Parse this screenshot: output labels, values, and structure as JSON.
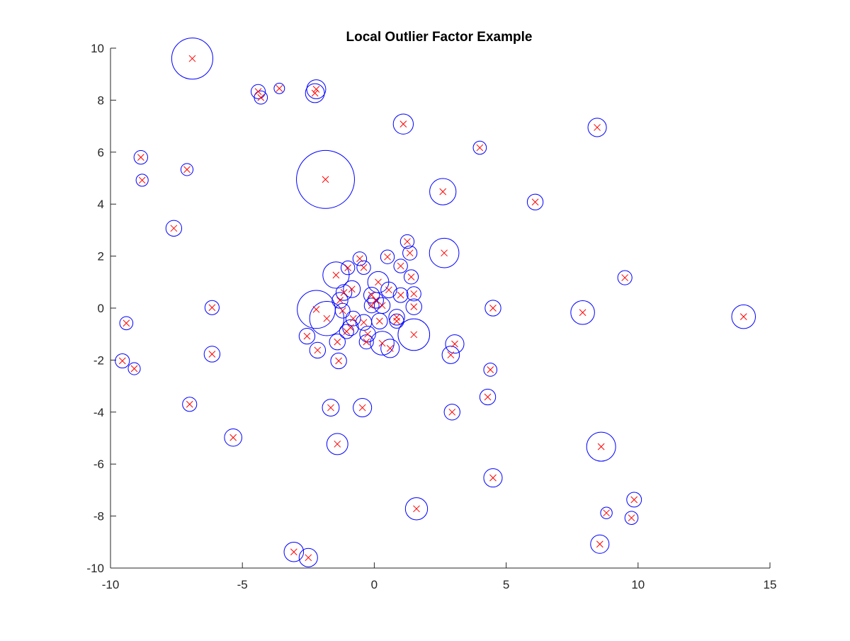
{
  "chart_data": {
    "type": "scatter",
    "title": "Local Outlier Factor Example",
    "xlabel": "",
    "ylabel": "",
    "xlim": [
      -10,
      15
    ],
    "ylim": [
      -10,
      10
    ],
    "xticks": [
      -10,
      -5,
      0,
      5,
      10,
      15
    ],
    "yticks": [
      -10,
      -8,
      -6,
      -4,
      -2,
      0,
      2,
      4,
      6,
      8,
      10
    ],
    "xtick_labels": [
      "-10",
      "-5",
      "0",
      "5",
      "10",
      "15"
    ],
    "ytick_labels": [
      "-10",
      "-8",
      "-6",
      "-4",
      "-2",
      "0",
      "2",
      "4",
      "6",
      "8",
      "10"
    ],
    "grid": false,
    "legend": "none",
    "point_marker": "x",
    "point_color": "#ff0000",
    "circle_color": "#0000ff",
    "note": "r = circle radius (LOF score magnitude) in x-axis data units",
    "points": [
      {
        "x": -6.9,
        "y": 9.6,
        "r": 0.78
      },
      {
        "x": -4.4,
        "y": 8.33,
        "r": 0.27
      },
      {
        "x": -4.3,
        "y": 8.1,
        "r": 0.25
      },
      {
        "x": -3.6,
        "y": 8.45,
        "r": 0.2
      },
      {
        "x": -2.2,
        "y": 8.42,
        "r": 0.36
      },
      {
        "x": -2.25,
        "y": 8.27,
        "r": 0.36
      },
      {
        "x": 1.1,
        "y": 7.08,
        "r": 0.38
      },
      {
        "x": 8.45,
        "y": 6.95,
        "r": 0.35
      },
      {
        "x": -8.85,
        "y": 5.8,
        "r": 0.26
      },
      {
        "x": -8.8,
        "y": 4.92,
        "r": 0.23
      },
      {
        "x": -7.1,
        "y": 5.33,
        "r": 0.23
      },
      {
        "x": -1.85,
        "y": 4.95,
        "r": 1.1
      },
      {
        "x": 4.0,
        "y": 6.17,
        "r": 0.25
      },
      {
        "x": 2.6,
        "y": 4.48,
        "r": 0.5
      },
      {
        "x": 6.1,
        "y": 4.08,
        "r": 0.3
      },
      {
        "x": -7.6,
        "y": 3.07,
        "r": 0.3
      },
      {
        "x": 1.25,
        "y": 2.56,
        "r": 0.26
      },
      {
        "x": 1.35,
        "y": 2.12,
        "r": 0.27
      },
      {
        "x": 2.65,
        "y": 2.12,
        "r": 0.56
      },
      {
        "x": 0.5,
        "y": 1.97,
        "r": 0.26
      },
      {
        "x": -0.55,
        "y": 1.9,
        "r": 0.26
      },
      {
        "x": -0.4,
        "y": 1.56,
        "r": 0.26
      },
      {
        "x": -1.0,
        "y": 1.55,
        "r": 0.26
      },
      {
        "x": 1.0,
        "y": 1.62,
        "r": 0.26
      },
      {
        "x": -1.45,
        "y": 1.27,
        "r": 0.5
      },
      {
        "x": 1.4,
        "y": 1.2,
        "r": 0.27
      },
      {
        "x": 0.15,
        "y": 1.0,
        "r": 0.4
      },
      {
        "x": 9.5,
        "y": 1.17,
        "r": 0.27
      },
      {
        "x": -0.85,
        "y": 0.73,
        "r": 0.32
      },
      {
        "x": -1.15,
        "y": 0.6,
        "r": 0.3
      },
      {
        "x": 0.55,
        "y": 0.7,
        "r": 0.3
      },
      {
        "x": 1.5,
        "y": 0.55,
        "r": 0.27
      },
      {
        "x": 1.0,
        "y": 0.5,
        "r": 0.28
      },
      {
        "x": -1.3,
        "y": 0.3,
        "r": 0.3
      },
      {
        "x": -0.1,
        "y": 0.5,
        "r": 0.3
      },
      {
        "x": 0.05,
        "y": 0.3,
        "r": 0.3
      },
      {
        "x": -0.1,
        "y": 0.1,
        "r": 0.28
      },
      {
        "x": 0.3,
        "y": 0.1,
        "r": 0.3
      },
      {
        "x": 1.5,
        "y": 0.05,
        "r": 0.3
      },
      {
        "x": -6.15,
        "y": 0.02,
        "r": 0.27
      },
      {
        "x": 4.5,
        "y": 0.0,
        "r": 0.3
      },
      {
        "x": -2.2,
        "y": -0.05,
        "r": 0.72
      },
      {
        "x": -1.8,
        "y": -0.4,
        "r": 0.65
      },
      {
        "x": -1.2,
        "y": -0.1,
        "r": 0.28
      },
      {
        "x": -0.8,
        "y": -0.4,
        "r": 0.28
      },
      {
        "x": -0.4,
        "y": -0.55,
        "r": 0.3
      },
      {
        "x": 0.2,
        "y": -0.5,
        "r": 0.3
      },
      {
        "x": 0.85,
        "y": -0.35,
        "r": 0.3
      },
      {
        "x": 0.85,
        "y": -0.5,
        "r": 0.27
      },
      {
        "x": 7.9,
        "y": -0.17,
        "r": 0.45
      },
      {
        "x": 14.0,
        "y": -0.33,
        "r": 0.45
      },
      {
        "x": -9.4,
        "y": -0.58,
        "r": 0.25
      },
      {
        "x": -0.9,
        "y": -0.75,
        "r": 0.3
      },
      {
        "x": -1.05,
        "y": -0.9,
        "r": 0.27
      },
      {
        "x": -0.25,
        "y": -1.0,
        "r": 0.3
      },
      {
        "x": 1.5,
        "y": -1.02,
        "r": 0.6
      },
      {
        "x": -2.55,
        "y": -1.08,
        "r": 0.3
      },
      {
        "x": -1.4,
        "y": -1.3,
        "r": 0.3
      },
      {
        "x": -0.3,
        "y": -1.3,
        "r": 0.27
      },
      {
        "x": 0.3,
        "y": -1.35,
        "r": 0.45
      },
      {
        "x": 0.6,
        "y": -1.55,
        "r": 0.35
      },
      {
        "x": 3.05,
        "y": -1.38,
        "r": 0.35
      },
      {
        "x": -2.15,
        "y": -1.62,
        "r": 0.3
      },
      {
        "x": -6.15,
        "y": -1.77,
        "r": 0.3
      },
      {
        "x": 2.9,
        "y": -1.8,
        "r": 0.33
      },
      {
        "x": -1.35,
        "y": -2.03,
        "r": 0.3
      },
      {
        "x": -9.55,
        "y": -2.03,
        "r": 0.27
      },
      {
        "x": -9.1,
        "y": -2.33,
        "r": 0.23
      },
      {
        "x": 4.4,
        "y": -2.37,
        "r": 0.25
      },
      {
        "x": 4.3,
        "y": -3.42,
        "r": 0.3
      },
      {
        "x": -7.0,
        "y": -3.7,
        "r": 0.27
      },
      {
        "x": -1.65,
        "y": -3.83,
        "r": 0.32
      },
      {
        "x": -0.45,
        "y": -3.83,
        "r": 0.35
      },
      {
        "x": 2.95,
        "y": -4.0,
        "r": 0.3
      },
      {
        "x": -5.35,
        "y": -4.98,
        "r": 0.33
      },
      {
        "x": -1.4,
        "y": -5.23,
        "r": 0.4
      },
      {
        "x": 8.6,
        "y": -5.33,
        "r": 0.55
      },
      {
        "x": 4.5,
        "y": -6.53,
        "r": 0.35
      },
      {
        "x": 9.85,
        "y": -7.37,
        "r": 0.28
      },
      {
        "x": 1.6,
        "y": -7.72,
        "r": 0.42
      },
      {
        "x": 8.8,
        "y": -7.88,
        "r": 0.22
      },
      {
        "x": 9.75,
        "y": -8.07,
        "r": 0.25
      },
      {
        "x": 8.55,
        "y": -9.08,
        "r": 0.35
      },
      {
        "x": -3.05,
        "y": -9.38,
        "r": 0.37
      },
      {
        "x": -2.5,
        "y": -9.6,
        "r": 0.35
      }
    ]
  }
}
